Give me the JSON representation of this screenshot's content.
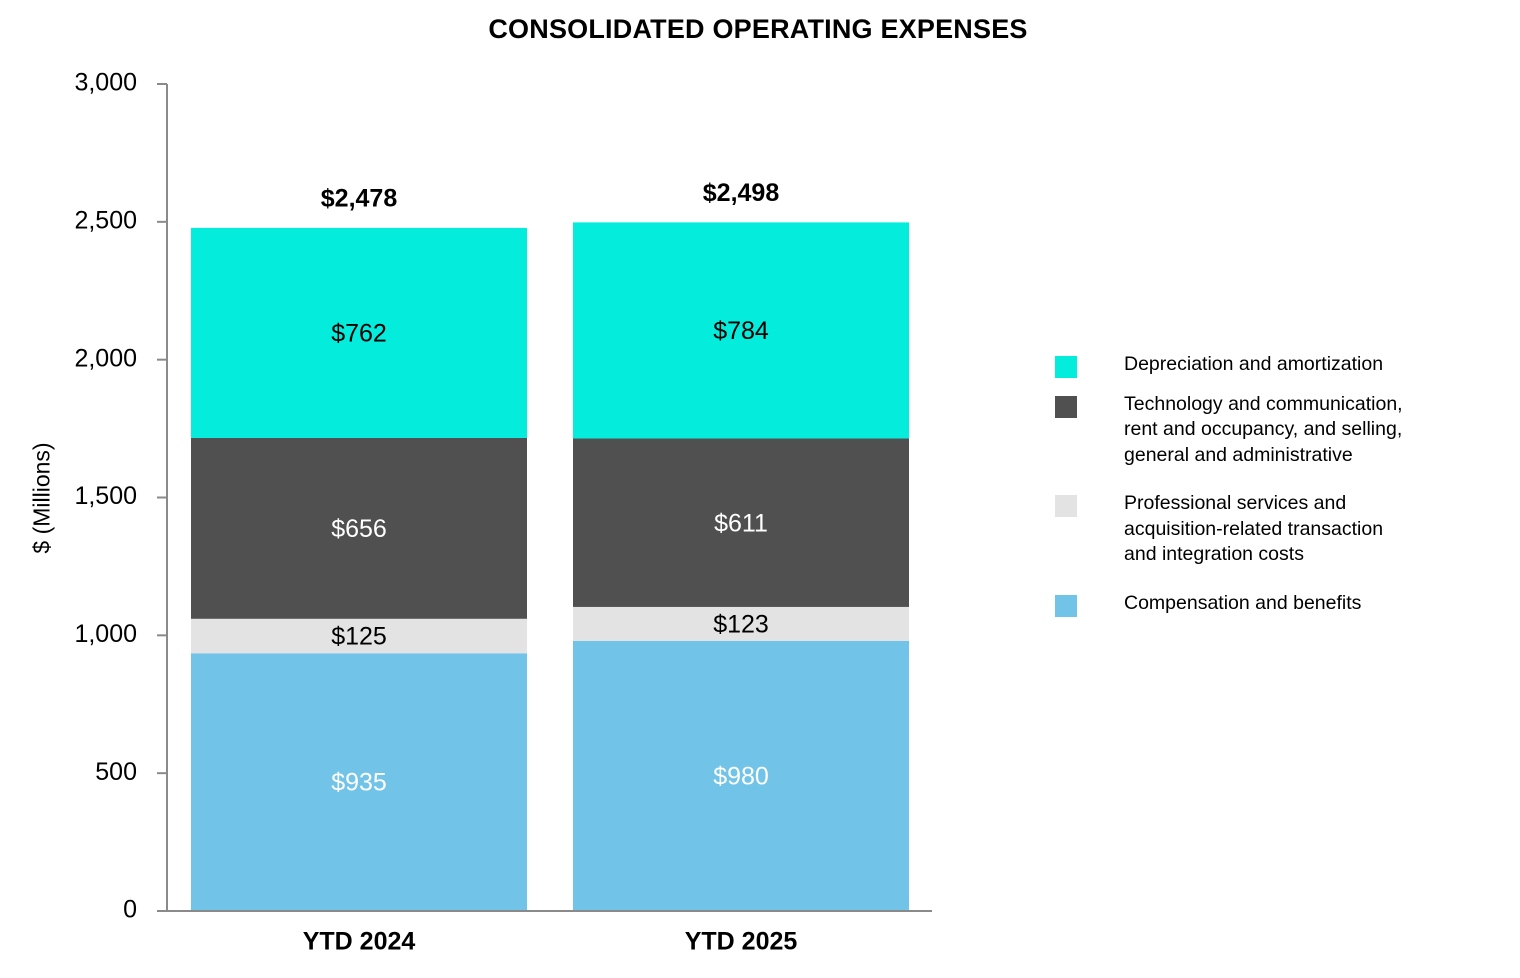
{
  "chart_data": {
    "type": "bar",
    "stacked": true,
    "title": "CONSOLIDATED OPERATING EXPENSES",
    "xlabel": "",
    "ylabel": "$ (Millions)",
    "ylim": [
      0,
      3000
    ],
    "yticks": [
      0,
      500,
      1000,
      1500,
      2000,
      2500,
      3000
    ],
    "ytick_labels": [
      "0",
      "500",
      "1,000",
      "1,500",
      "2,000",
      "2,500",
      "3,000"
    ],
    "grid": false,
    "legend_position": "right",
    "categories": [
      "YTD 2024",
      "YTD 2025"
    ],
    "totals": [
      2478,
      2498
    ],
    "total_labels": [
      "$2,478",
      "$2,498"
    ],
    "series": [
      {
        "name": "Compensation and benefits",
        "color": "#71c4e8",
        "label_color": "#ffffff",
        "values": [
          935,
          980
        ],
        "labels": [
          "$935",
          "$980"
        ]
      },
      {
        "name": "Professional services and\n acquisition-related  transaction\n and integration costs",
        "color": "#e3e3e3",
        "label_color": "#000000",
        "values": [
          125,
          123
        ],
        "labels": [
          "$125",
          "$123"
        ]
      },
      {
        "name": "Technology and communication,\nrent and occupancy, and selling,\ngeneral and administrative",
        "color": "#505050",
        "label_color": "#ffffff",
        "values": [
          656,
          611
        ],
        "labels": [
          "$656",
          "$611"
        ]
      },
      {
        "name": "Depreciation and amortization",
        "color": "#03ecdc",
        "label_color": "#000000",
        "values": [
          762,
          784
        ],
        "labels": [
          "$762",
          "$784"
        ]
      }
    ],
    "legend_order": [
      3,
      2,
      1,
      0
    ]
  }
}
